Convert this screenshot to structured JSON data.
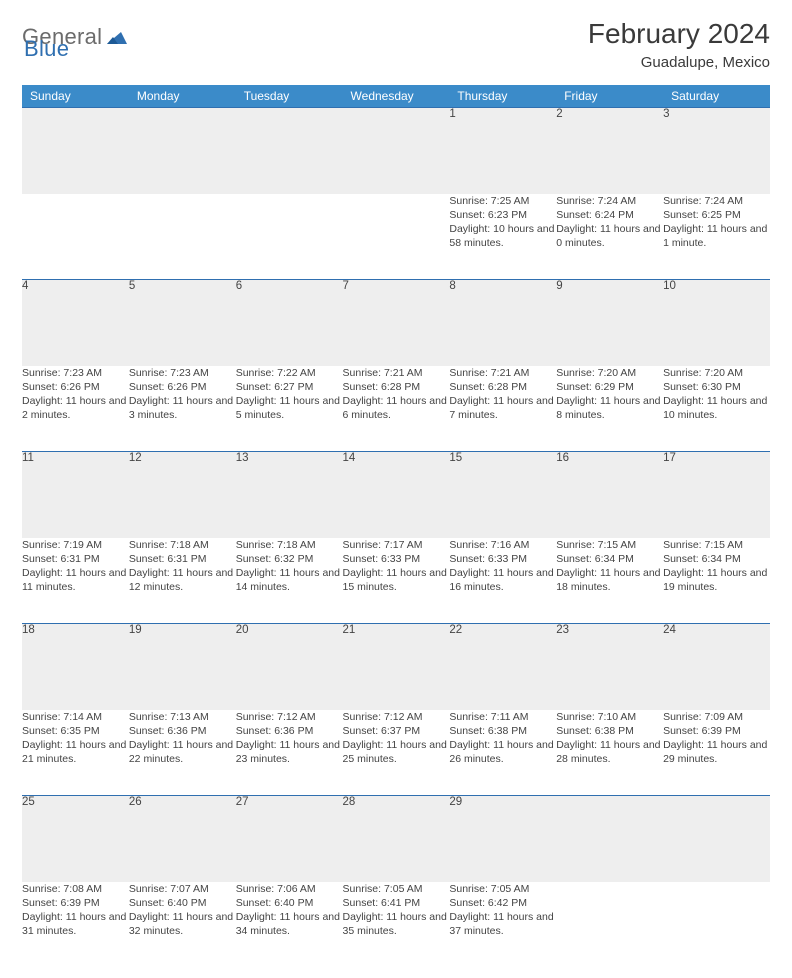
{
  "logo": {
    "gray": "General",
    "blue": "Blue"
  },
  "header": {
    "title": "February 2024",
    "location": "Guadalupe, Mexico"
  },
  "colors": {
    "headerBar": "#3b8bc9",
    "dayRow": "#eeeeee",
    "rule": "#2f6fb0",
    "text": "#444"
  },
  "weekdays": [
    "Sunday",
    "Monday",
    "Tuesday",
    "Wednesday",
    "Thursday",
    "Friday",
    "Saturday"
  ],
  "startCol": 4,
  "days": [
    {
      "n": "1",
      "sr": "Sunrise: 7:25 AM",
      "ss": "Sunset: 6:23 PM",
      "dl": "Daylight: 10 hours and 58 minutes."
    },
    {
      "n": "2",
      "sr": "Sunrise: 7:24 AM",
      "ss": "Sunset: 6:24 PM",
      "dl": "Daylight: 11 hours and 0 minutes."
    },
    {
      "n": "3",
      "sr": "Sunrise: 7:24 AM",
      "ss": "Sunset: 6:25 PM",
      "dl": "Daylight: 11 hours and 1 minute."
    },
    {
      "n": "4",
      "sr": "Sunrise: 7:23 AM",
      "ss": "Sunset: 6:26 PM",
      "dl": "Daylight: 11 hours and 2 minutes."
    },
    {
      "n": "5",
      "sr": "Sunrise: 7:23 AM",
      "ss": "Sunset: 6:26 PM",
      "dl": "Daylight: 11 hours and 3 minutes."
    },
    {
      "n": "6",
      "sr": "Sunrise: 7:22 AM",
      "ss": "Sunset: 6:27 PM",
      "dl": "Daylight: 11 hours and 5 minutes."
    },
    {
      "n": "7",
      "sr": "Sunrise: 7:21 AM",
      "ss": "Sunset: 6:28 PM",
      "dl": "Daylight: 11 hours and 6 minutes."
    },
    {
      "n": "8",
      "sr": "Sunrise: 7:21 AM",
      "ss": "Sunset: 6:28 PM",
      "dl": "Daylight: 11 hours and 7 minutes."
    },
    {
      "n": "9",
      "sr": "Sunrise: 7:20 AM",
      "ss": "Sunset: 6:29 PM",
      "dl": "Daylight: 11 hours and 8 minutes."
    },
    {
      "n": "10",
      "sr": "Sunrise: 7:20 AM",
      "ss": "Sunset: 6:30 PM",
      "dl": "Daylight: 11 hours and 10 minutes."
    },
    {
      "n": "11",
      "sr": "Sunrise: 7:19 AM",
      "ss": "Sunset: 6:31 PM",
      "dl": "Daylight: 11 hours and 11 minutes."
    },
    {
      "n": "12",
      "sr": "Sunrise: 7:18 AM",
      "ss": "Sunset: 6:31 PM",
      "dl": "Daylight: 11 hours and 12 minutes."
    },
    {
      "n": "13",
      "sr": "Sunrise: 7:18 AM",
      "ss": "Sunset: 6:32 PM",
      "dl": "Daylight: 11 hours and 14 minutes."
    },
    {
      "n": "14",
      "sr": "Sunrise: 7:17 AM",
      "ss": "Sunset: 6:33 PM",
      "dl": "Daylight: 11 hours and 15 minutes."
    },
    {
      "n": "15",
      "sr": "Sunrise: 7:16 AM",
      "ss": "Sunset: 6:33 PM",
      "dl": "Daylight: 11 hours and 16 minutes."
    },
    {
      "n": "16",
      "sr": "Sunrise: 7:15 AM",
      "ss": "Sunset: 6:34 PM",
      "dl": "Daylight: 11 hours and 18 minutes."
    },
    {
      "n": "17",
      "sr": "Sunrise: 7:15 AM",
      "ss": "Sunset: 6:34 PM",
      "dl": "Daylight: 11 hours and 19 minutes."
    },
    {
      "n": "18",
      "sr": "Sunrise: 7:14 AM",
      "ss": "Sunset: 6:35 PM",
      "dl": "Daylight: 11 hours and 21 minutes."
    },
    {
      "n": "19",
      "sr": "Sunrise: 7:13 AM",
      "ss": "Sunset: 6:36 PM",
      "dl": "Daylight: 11 hours and 22 minutes."
    },
    {
      "n": "20",
      "sr": "Sunrise: 7:12 AM",
      "ss": "Sunset: 6:36 PM",
      "dl": "Daylight: 11 hours and 23 minutes."
    },
    {
      "n": "21",
      "sr": "Sunrise: 7:12 AM",
      "ss": "Sunset: 6:37 PM",
      "dl": "Daylight: 11 hours and 25 minutes."
    },
    {
      "n": "22",
      "sr": "Sunrise: 7:11 AM",
      "ss": "Sunset: 6:38 PM",
      "dl": "Daylight: 11 hours and 26 minutes."
    },
    {
      "n": "23",
      "sr": "Sunrise: 7:10 AM",
      "ss": "Sunset: 6:38 PM",
      "dl": "Daylight: 11 hours and 28 minutes."
    },
    {
      "n": "24",
      "sr": "Sunrise: 7:09 AM",
      "ss": "Sunset: 6:39 PM",
      "dl": "Daylight: 11 hours and 29 minutes."
    },
    {
      "n": "25",
      "sr": "Sunrise: 7:08 AM",
      "ss": "Sunset: 6:39 PM",
      "dl": "Daylight: 11 hours and 31 minutes."
    },
    {
      "n": "26",
      "sr": "Sunrise: 7:07 AM",
      "ss": "Sunset: 6:40 PM",
      "dl": "Daylight: 11 hours and 32 minutes."
    },
    {
      "n": "27",
      "sr": "Sunrise: 7:06 AM",
      "ss": "Sunset: 6:40 PM",
      "dl": "Daylight: 11 hours and 34 minutes."
    },
    {
      "n": "28",
      "sr": "Sunrise: 7:05 AM",
      "ss": "Sunset: 6:41 PM",
      "dl": "Daylight: 11 hours and 35 minutes."
    },
    {
      "n": "29",
      "sr": "Sunrise: 7:05 AM",
      "ss": "Sunset: 6:42 PM",
      "dl": "Daylight: 11 hours and 37 minutes."
    }
  ]
}
